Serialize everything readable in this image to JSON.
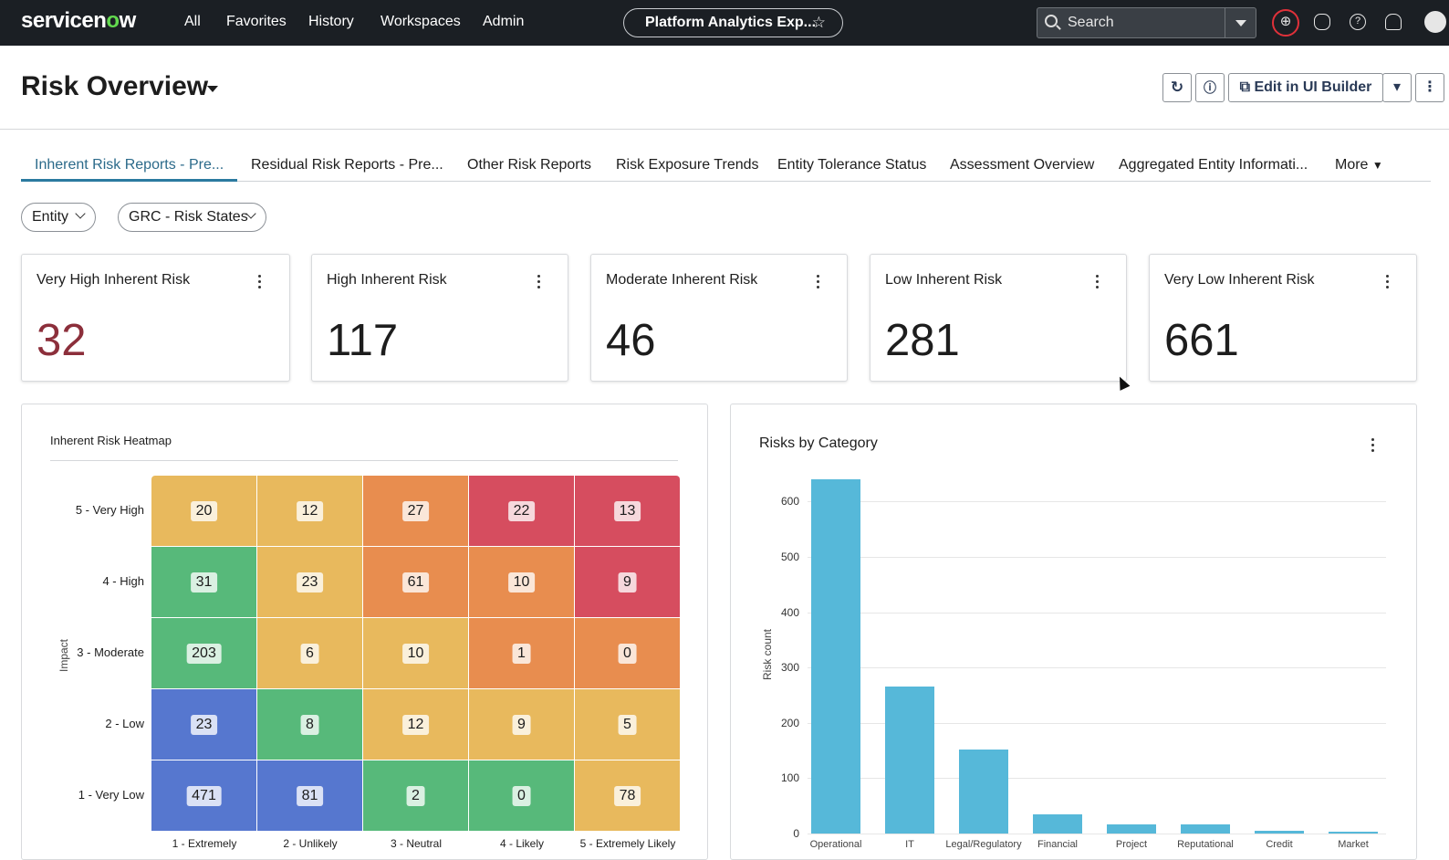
{
  "topbar": {
    "logo_a": "servicen",
    "logo_o": "o",
    "logo_b": "w",
    "nav": [
      "All",
      "Favorites",
      "History",
      "Workspaces",
      "Admin"
    ],
    "app_pill": "Platform Analytics Exp...",
    "search_placeholder": "Search"
  },
  "header": {
    "title": "Risk Overview",
    "edit_button": "Edit in UI Builder"
  },
  "tabs": [
    "Inherent Risk Reports - Pre...",
    "Residual Risk Reports - Pre...",
    "Other Risk Reports",
    "Risk Exposure Trends",
    "Entity Tolerance Status",
    "Assessment Overview",
    "Aggregated Entity Informati...",
    "More"
  ],
  "filters": [
    "Entity",
    "GRC - Risk States"
  ],
  "cards": [
    {
      "title": "Very High Inherent Risk",
      "value": "32",
      "color": "#8c2f3b"
    },
    {
      "title": "High Inherent Risk",
      "value": "117",
      "color": "#1d1d1d"
    },
    {
      "title": "Moderate Inherent Risk",
      "value": "46",
      "color": "#1d1d1d"
    },
    {
      "title": "Low Inherent Risk",
      "value": "281",
      "color": "#1d1d1d"
    },
    {
      "title": "Very Low Inherent Risk",
      "value": "661",
      "color": "#1d1d1d"
    }
  ],
  "heatmap": {
    "title": "Inherent Risk Heatmap",
    "y_axis_label": "Impact",
    "rows": [
      "5 - Very High",
      "4 - High",
      "3 - Moderate",
      "2 - Low",
      "1 - Very Low"
    ],
    "columns": [
      "1 - Extremely",
      "2 - Unlikely",
      "3 - Neutral",
      "4 - Likely",
      "5 - Extremely Likely"
    ],
    "values": [
      [
        20,
        12,
        27,
        22,
        13
      ],
      [
        31,
        23,
        61,
        10,
        9
      ],
      [
        203,
        6,
        10,
        1,
        0
      ],
      [
        23,
        8,
        12,
        9,
        5
      ],
      [
        471,
        81,
        2,
        0,
        78
      ]
    ],
    "colors": [
      [
        "#e8b95d",
        "#e8b95d",
        "#e88d4f",
        "#d64d5f",
        "#d64d5f"
      ],
      [
        "#57b97a",
        "#e8b95d",
        "#e88d4f",
        "#e88d4f",
        "#d64d5f"
      ],
      [
        "#57b97a",
        "#e8b95d",
        "#e8b95d",
        "#e88d4f",
        "#e88d4f"
      ],
      [
        "#5677cf",
        "#57b97a",
        "#e8b95d",
        "#e8b95d",
        "#e8b95d"
      ],
      [
        "#5677cf",
        "#5677cf",
        "#57b97a",
        "#57b97a",
        "#e8b95d"
      ]
    ]
  },
  "chart_data": {
    "type": "bar",
    "title": "Risks by Category",
    "ylabel": "Risk count",
    "xlabel": "",
    "ylim": [
      0,
      640
    ],
    "yticks": [
      0,
      100,
      200,
      300,
      400,
      500,
      600
    ],
    "categories": [
      "Operational",
      "IT",
      "Legal/Regulatory",
      "Financial",
      "Project",
      "Reputational",
      "Credit",
      "Market"
    ],
    "values": [
      640,
      265,
      152,
      35,
      17,
      16,
      5,
      4
    ],
    "bar_color": "#56b8d9"
  }
}
